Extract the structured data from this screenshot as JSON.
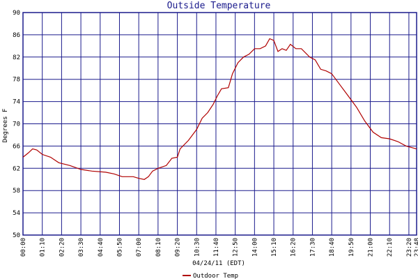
{
  "chart_data": {
    "type": "line",
    "title": "Outside Temperature",
    "y_label": "Degrees F",
    "x_label": "04/24/11 (EDT)",
    "xlim": [
      0,
      1428
    ],
    "xticks": [
      {
        "value": 0,
        "label": "00:00"
      },
      {
        "value": 70,
        "label": "01:10"
      },
      {
        "value": 140,
        "label": "02:20"
      },
      {
        "value": 210,
        "label": "03:30"
      },
      {
        "value": 280,
        "label": "04:40"
      },
      {
        "value": 350,
        "label": "05:50"
      },
      {
        "value": 420,
        "label": "07:00"
      },
      {
        "value": 490,
        "label": "08:10"
      },
      {
        "value": 560,
        "label": "09:20"
      },
      {
        "value": 630,
        "label": "10:30"
      },
      {
        "value": 700,
        "label": "11:40"
      },
      {
        "value": 770,
        "label": "12:50"
      },
      {
        "value": 840,
        "label": "14:00"
      },
      {
        "value": 910,
        "label": "15:10"
      },
      {
        "value": 980,
        "label": "16:20"
      },
      {
        "value": 1050,
        "label": "17:30"
      },
      {
        "value": 1120,
        "label": "18:40"
      },
      {
        "value": 1190,
        "label": "19:50"
      },
      {
        "value": 1260,
        "label": "21:00"
      },
      {
        "value": 1330,
        "label": "22:10"
      },
      {
        "value": 1400,
        "label": "23:20"
      },
      {
        "value": 1428,
        "label": "23:48"
      }
    ],
    "ylim": [
      50,
      90
    ],
    "yticks": [
      50,
      54,
      58,
      62,
      66,
      70,
      74,
      78,
      82,
      86,
      90
    ],
    "grid": true,
    "legend": "bottom",
    "x": [
      0,
      20,
      35,
      50,
      70,
      100,
      130,
      170,
      210,
      250,
      300,
      330,
      360,
      400,
      420,
      440,
      455,
      470,
      490,
      520,
      540,
      560,
      570,
      600,
      630,
      650,
      670,
      690,
      705,
      720,
      745,
      760,
      780,
      800,
      820,
      840,
      860,
      880,
      895,
      910,
      925,
      940,
      955,
      970,
      990,
      1010,
      1040,
      1060,
      1080,
      1100,
      1120,
      1150,
      1180,
      1210,
      1240,
      1270,
      1300,
      1330,
      1360,
      1390,
      1428
    ],
    "series": [
      {
        "name": "Outdoor Temp",
        "color": "#b00000",
        "values": [
          64.0,
          64.8,
          65.5,
          65.3,
          64.5,
          64.0,
          63.0,
          62.5,
          61.8,
          61.5,
          61.3,
          61.0,
          60.5,
          60.5,
          60.2,
          60.0,
          60.5,
          61.5,
          62.0,
          62.5,
          63.8,
          64.0,
          65.5,
          67.0,
          69.0,
          71.0,
          72.0,
          73.5,
          75.0,
          76.3,
          76.5,
          79.0,
          81.0,
          82.0,
          82.5,
          83.5,
          83.5,
          84.0,
          85.3,
          85.0,
          83.0,
          83.5,
          83.2,
          84.3,
          83.5,
          83.5,
          82.0,
          81.5,
          79.8,
          79.5,
          79.0,
          77.0,
          75.0,
          73.0,
          70.5,
          68.5,
          67.5,
          67.3,
          66.8,
          66.0,
          65.5
        ]
      }
    ]
  }
}
